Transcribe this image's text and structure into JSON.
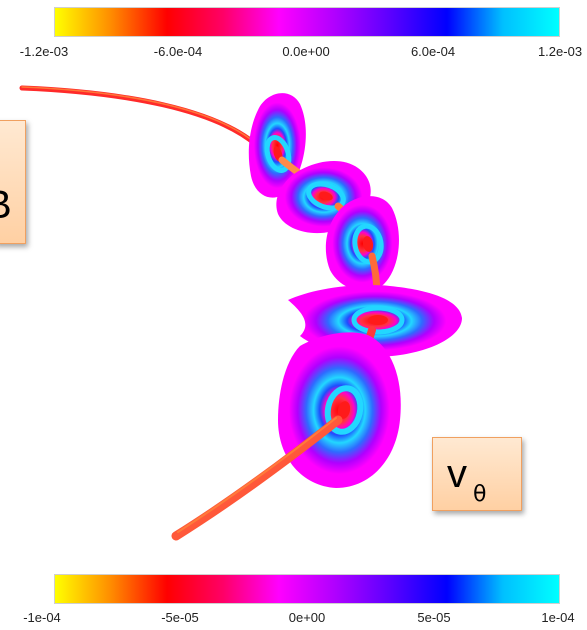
{
  "colorbar_gradient": [
    "#ffff00",
    "#ff8c00",
    "#ff0000",
    "#ff0066",
    "#ff00ff",
    "#b000ff",
    "#5a00ff",
    "#0000ff",
    "#00c0ff",
    "#00ffff"
  ],
  "top_colorbar": {
    "ticks": [
      "-1.2e-03",
      "-6.0e-04",
      "0.0e+00",
      "6.0e-04",
      "1.2e-03"
    ]
  },
  "bottom_colorbar": {
    "ticks": [
      "-1e-04",
      "-5e-05",
      "0e+00",
      "5e-05",
      "1e-04"
    ]
  },
  "left_label": {
    "text": "B"
  },
  "right_label": {
    "symbol": "v",
    "subscript": "θ"
  },
  "colors": {
    "tube_red": "#ff2a2a",
    "tube_orange": "#ff8a3a",
    "plane_magenta": "#ff00ff",
    "ring_blue": "#1e4dff",
    "ring_cyan": "#22d8ff",
    "label_border": "#f0a060"
  }
}
